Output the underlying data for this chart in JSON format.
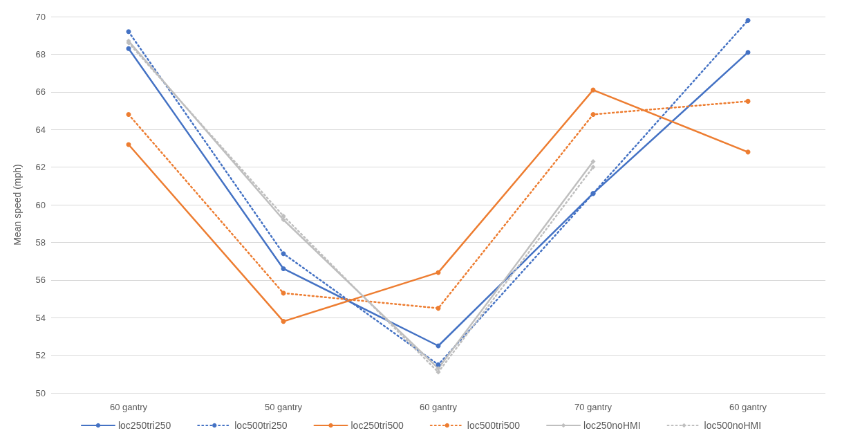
{
  "chart_data": {
    "type": "line",
    "ylabel": "Mean speed (mph)",
    "categories": [
      "60 gantry",
      "50 gantry",
      "60 gantry",
      "70 gantry",
      "60 gantry"
    ],
    "series": [
      {
        "name": "loc250tri250",
        "color": "#4472c4",
        "line_style": "solid",
        "marker": "circle",
        "values": [
          68.3,
          56.6,
          52.5,
          60.6,
          68.1
        ]
      },
      {
        "name": "loc500tri250",
        "color": "#4472c4",
        "line_style": "dotted",
        "marker": "circle",
        "values": [
          69.2,
          57.4,
          51.5,
          60.6,
          69.8
        ]
      },
      {
        "name": "loc250tri500",
        "color": "#ed7d31",
        "line_style": "solid",
        "marker": "circle",
        "values": [
          63.2,
          53.8,
          56.4,
          66.1,
          62.8
        ]
      },
      {
        "name": "loc500tri500",
        "color": "#ed7d31",
        "line_style": "dotted",
        "marker": "circle",
        "values": [
          64.8,
          55.3,
          54.5,
          64.8,
          65.5
        ]
      },
      {
        "name": "loc250noHMI",
        "color": "#bfbfbf",
        "line_style": "solid",
        "marker": "diamond",
        "values": [
          68.7,
          59.2,
          51.3,
          62.3,
          null
        ]
      },
      {
        "name": "loc500noHMI",
        "color": "#bfbfbf",
        "line_style": "dotted",
        "marker": "diamond",
        "values": [
          68.6,
          59.4,
          51.1,
          62.0,
          null
        ]
      }
    ],
    "ylim": [
      50,
      70
    ],
    "yticks": [
      50,
      52,
      54,
      56,
      58,
      60,
      62,
      64,
      66,
      68,
      70
    ],
    "grid": "y",
    "legend": "bottom"
  }
}
